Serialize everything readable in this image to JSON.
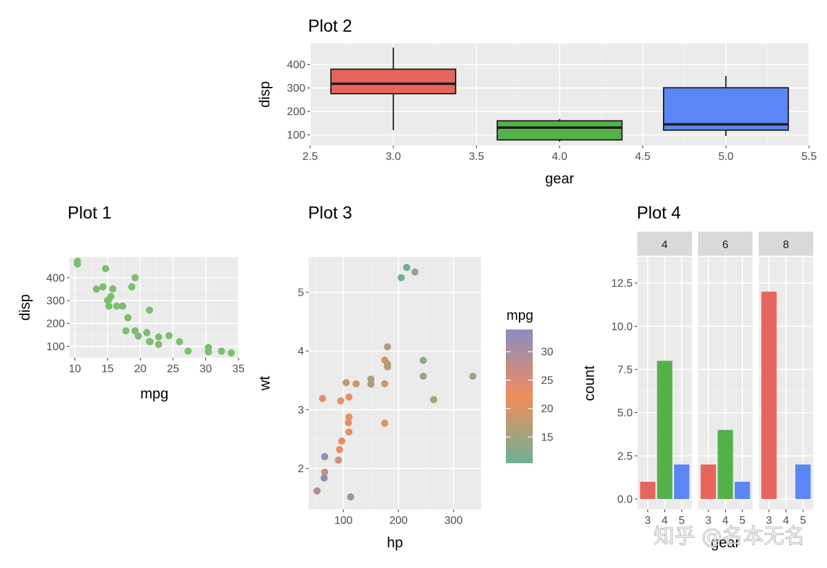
{
  "watermark": "知乎 @名本无名",
  "chart_data": [
    {
      "id": "plot1",
      "type": "scatter",
      "title": "Plot 1",
      "xlabel": "mpg",
      "ylabel": "disp",
      "xlim": [
        9.2,
        35.1
      ],
      "ylim": [
        50,
        490
      ],
      "xticks": [
        10,
        15,
        20,
        25,
        30,
        35
      ],
      "yticks": [
        100,
        200,
        300,
        400
      ],
      "point_color": "#7CBF6E",
      "points": [
        [
          21.0,
          160
        ],
        [
          21.0,
          160
        ],
        [
          22.8,
          108
        ],
        [
          21.4,
          258
        ],
        [
          18.7,
          360
        ],
        [
          18.1,
          225
        ],
        [
          14.3,
          360
        ],
        [
          24.4,
          146.7
        ],
        [
          22.8,
          140.8
        ],
        [
          19.2,
          167.6
        ],
        [
          17.8,
          167.6
        ],
        [
          16.4,
          275.8
        ],
        [
          17.3,
          275.8
        ],
        [
          15.2,
          275.8
        ],
        [
          10.4,
          472
        ],
        [
          10.4,
          460
        ],
        [
          14.7,
          440
        ],
        [
          32.4,
          78.7
        ],
        [
          30.4,
          75.7
        ],
        [
          33.9,
          71.1
        ],
        [
          21.5,
          120.1
        ],
        [
          15.5,
          318
        ],
        [
          15.2,
          304
        ],
        [
          13.3,
          350
        ],
        [
          19.2,
          400
        ],
        [
          27.3,
          79
        ],
        [
          26.0,
          120.3
        ],
        [
          30.4,
          95.1
        ],
        [
          15.8,
          351
        ],
        [
          19.7,
          145
        ],
        [
          15.0,
          301
        ],
        [
          21.4,
          121
        ]
      ]
    },
    {
      "id": "plot2",
      "type": "box",
      "title": "Plot 2",
      "xlabel": "gear",
      "ylabel": "disp",
      "xlim": [
        2.5,
        5.5
      ],
      "ylim": [
        55,
        490
      ],
      "xticks": [
        2.5,
        3.0,
        3.5,
        4.0,
        4.5,
        5.0,
        5.5
      ],
      "yticks": [
        100,
        200,
        300,
        400
      ],
      "boxes": [
        {
          "x": 3,
          "min": 120.1,
          "q1": 275.8,
          "median": 318,
          "q3": 380,
          "max": 472,
          "color": "#E6665E"
        },
        {
          "x": 4,
          "min": 71.1,
          "q1": 78.8,
          "median": 130.9,
          "q3": 160,
          "max": 167.6,
          "color": "#54B14A"
        },
        {
          "x": 5,
          "min": 95.1,
          "q1": 120.3,
          "median": 145,
          "q3": 301,
          "max": 351,
          "color": "#5B87F6"
        }
      ]
    },
    {
      "id": "plot3",
      "type": "scatter",
      "title": "Plot 3",
      "xlabel": "hp",
      "ylabel": "wt",
      "xlim": [
        37,
        350
      ],
      "ylim": [
        1.3,
        5.6
      ],
      "xticks": [
        100,
        200,
        300
      ],
      "yticks": [
        2,
        3,
        4,
        5
      ],
      "legend": {
        "title": "mpg",
        "ticks": [
          15,
          20,
          25,
          30
        ],
        "range": [
          10.4,
          33.9
        ],
        "low_color": "#6DB196",
        "mid_color": "#F08D5C",
        "high_color": "#8A8DC2"
      },
      "points": [
        [
          110,
          2.62,
          21.0
        ],
        [
          110,
          2.875,
          21.0
        ],
        [
          93,
          2.32,
          22.8
        ],
        [
          110,
          3.215,
          21.4
        ],
        [
          175,
          3.44,
          18.7
        ],
        [
          105,
          3.46,
          18.1
        ],
        [
          245,
          3.57,
          14.3
        ],
        [
          62,
          3.19,
          24.4
        ],
        [
          95,
          3.15,
          22.8
        ],
        [
          123,
          3.44,
          19.2
        ],
        [
          123,
          3.44,
          17.8
        ],
        [
          180,
          4.07,
          16.4
        ],
        [
          180,
          3.73,
          17.3
        ],
        [
          180,
          3.78,
          15.2
        ],
        [
          205,
          5.25,
          10.4
        ],
        [
          215,
          5.424,
          10.4
        ],
        [
          230,
          5.345,
          14.7
        ],
        [
          66,
          2.2,
          32.4
        ],
        [
          52,
          1.615,
          30.4
        ],
        [
          65,
          1.835,
          33.9
        ],
        [
          97,
          2.465,
          21.5
        ],
        [
          150,
          3.52,
          15.5
        ],
        [
          150,
          3.435,
          15.2
        ],
        [
          245,
          3.84,
          13.3
        ],
        [
          175,
          3.845,
          19.2
        ],
        [
          66,
          1.935,
          27.3
        ],
        [
          91,
          2.14,
          26.0
        ],
        [
          113,
          1.513,
          30.4
        ],
        [
          264,
          3.17,
          15.8
        ],
        [
          175,
          2.77,
          19.7
        ],
        [
          335,
          3.57,
          15.0
        ],
        [
          109,
          2.78,
          21.4
        ]
      ]
    },
    {
      "id": "plot4",
      "type": "bar",
      "title": "Plot 4",
      "xlabel": "gear",
      "ylabel": "count",
      "ylim": [
        -0.6,
        14.0
      ],
      "yticks": [
        0.0,
        2.5,
        5.0,
        7.5,
        10.0,
        12.5
      ],
      "ytick_labels": [
        "0.0",
        "2.5",
        "5.0",
        "7.5",
        "10.0",
        "12.5"
      ],
      "categories": [
        "3",
        "4",
        "5"
      ],
      "colors": {
        "3": "#E6665E",
        "4": "#54B14A",
        "5": "#5B87F6"
      },
      "facets": [
        {
          "label": "4",
          "values": [
            1,
            8,
            2
          ]
        },
        {
          "label": "6",
          "values": [
            2,
            4,
            1
          ]
        },
        {
          "label": "8",
          "values": [
            12,
            0,
            2
          ]
        }
      ]
    }
  ]
}
